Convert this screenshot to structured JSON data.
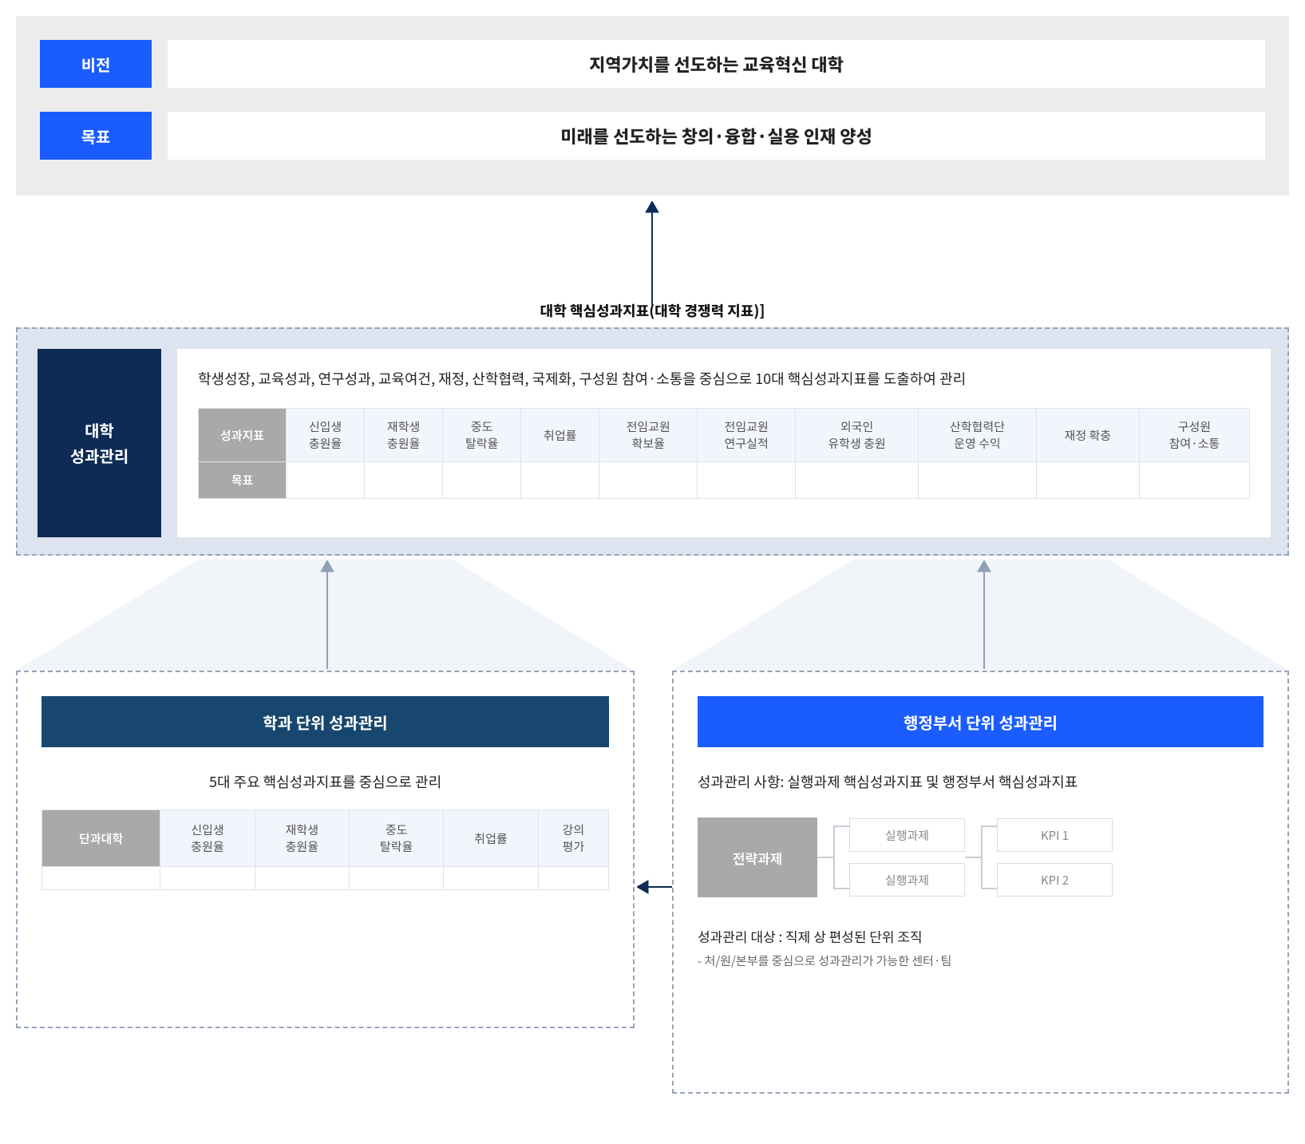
{
  "colors": {
    "blue": "#1b5cff",
    "navy": "#0e2b55",
    "tealnavy": "#17476f",
    "lightgrey_bg": "#ececec",
    "pale_panel": "#dde3ef",
    "dash_border": "#98a3b8",
    "cell_bg": "#f2f5fb",
    "cell_border": "#dfe2e8",
    "rowhdr": "#a9a9a9"
  },
  "top": {
    "vision_label": "비전",
    "vision_text": "지역가치를 선도하는 교육혁신 대학",
    "goal_label": "목표",
    "goal_text": "미래를 선도하는 창의·융합·실용 인재 양성"
  },
  "mid": {
    "title": "대학 핵심성과지표(대학 경쟁력 지표)]",
    "sidebar_l1": "대학",
    "sidebar_l2": "성과관리",
    "desc": "학생성장, 교육성과, 연구성과, 교육여건, 재정, 산학협력, 국제화, 구성원 참여·소통을 중심으로 10대 핵심성과지표를 도출하여 관리",
    "row_labels": [
      "성과지표",
      "목표"
    ],
    "cols": [
      "신입생\n충원율",
      "재학생\n충원율",
      "중도\n탈락율",
      "취업률",
      "전임교원\n확보율",
      "전임교원\n연구실적",
      "외국인\n유학생 충원",
      "산학협력단\n운영 수익",
      "재정 확충",
      "구성원\n참여·소통"
    ]
  },
  "left_panel": {
    "title": "학과 단위 성과관리",
    "subtitle": "5대 주요 핵심성과지표를 중심으로 관리",
    "hdr": "단과대학",
    "cols": [
      "신입생\n충원율",
      "재학생\n충원율",
      "중도\n탈락율",
      "취업률",
      "강의\n평가"
    ]
  },
  "right_panel": {
    "title": "행정부서 단위 성과관리",
    "subtitle": "성과관리 사항: 실행과제 핵심성과지표 및 행정부서 핵심성과지표",
    "flow": {
      "strategic": "전략과제",
      "exec1": "실행과제",
      "exec2": "실행과제",
      "kpi1": "KPI 1",
      "kpi2": "KPI 2"
    },
    "target": "성과관리 대상 : 직제 상 편성된 단위 조직",
    "target_sub": "- 처/원/본부를 중심으로 성과관리가 가능한 센터·팀"
  }
}
